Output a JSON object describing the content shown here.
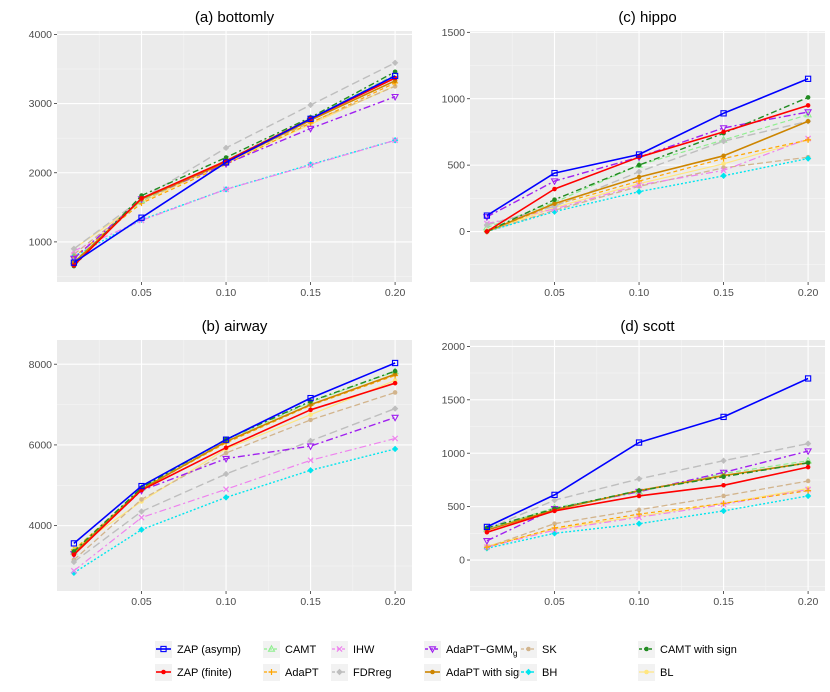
{
  "colors": {
    "ZAP (asymp)": "#0000ff",
    "ZAP (finite)": "#ff0000",
    "CAMT": "#90ee90",
    "AdaPT": "#ffa500",
    "IHW": "#ee82ee",
    "FDRreg": "#bebebe",
    "AdaPT-GMM": "#a020f0",
    "AdaPT with sign": "#cd8500",
    "SK": "#d2b48c",
    "BH": "#00e5ee",
    "CAMT with sign": "#228b22",
    "BL": "#ffe680"
  },
  "legend": {
    "entries": [
      {
        "key": "ZAP (asymp)",
        "label": "ZAP (asymp)"
      },
      {
        "key": "ZAP (finite)",
        "label": "ZAP (finite)"
      },
      {
        "key": "CAMT",
        "label": "CAMT"
      },
      {
        "key": "AdaPT",
        "label": "AdaPT"
      },
      {
        "key": "IHW",
        "label": "IHW"
      },
      {
        "key": "FDRreg",
        "label": "FDRreg"
      },
      {
        "key": "AdaPT-GMM",
        "label": "AdaPT−GMM",
        "subscript": "g"
      },
      {
        "key": "AdaPT with sign",
        "label": "AdaPT with sign"
      },
      {
        "key": "SK",
        "label": "SK"
      },
      {
        "key": "BH",
        "label": "BH"
      },
      {
        "key": "CAMT with sign",
        "label": "CAMT with sign"
      },
      {
        "key": "BL",
        "label": "BL"
      }
    ]
  },
  "chart_data": [
    {
      "id": "bottomly",
      "type": "line",
      "title": "(a) bottomly",
      "x": [
        0.01,
        0.05,
        0.1,
        0.15,
        0.2
      ],
      "xticks": [
        "0.05",
        "0.10",
        "0.15",
        "0.20"
      ],
      "xlim": [
        0.0,
        0.21
      ],
      "ylim": [
        420,
        4050
      ],
      "yticks": [
        1000,
        2000,
        3000,
        4000
      ],
      "series": [
        {
          "name": "ZAP (asymp)",
          "values": [
            700,
            1350,
            2150,
            2780,
            3400
          ]
        },
        {
          "name": "ZAP (finite)",
          "values": [
            660,
            1630,
            2170,
            2780,
            3370
          ]
        },
        {
          "name": "CAMT",
          "values": [
            720,
            1600,
            2180,
            2790,
            3420
          ]
        },
        {
          "name": "AdaPT",
          "values": [
            780,
            1560,
            2120,
            2720,
            3300
          ]
        },
        {
          "name": "IHW",
          "values": [
            870,
            1310,
            1760,
            2110,
            2470
          ]
        },
        {
          "name": "FDRreg",
          "values": [
            900,
            1620,
            2360,
            2980,
            3590
          ]
        },
        {
          "name": "AdaPT-GMM",
          "values": [
            760,
            1620,
            2130,
            2640,
            3100
          ]
        },
        {
          "name": "AdaPT with sign",
          "values": [
            700,
            1620,
            2150,
            2760,
            3330
          ]
        },
        {
          "name": "SK",
          "values": [
            820,
            1590,
            2160,
            2730,
            3250
          ]
        },
        {
          "name": "BH",
          "values": [
            790,
            1320,
            1760,
            2120,
            2470
          ]
        },
        {
          "name": "CAMT with sign",
          "values": [
            650,
            1670,
            2220,
            2800,
            3460
          ]
        },
        {
          "name": "BL",
          "values": [
            900,
            1580,
            2140,
            2700,
            3260
          ]
        }
      ]
    },
    {
      "id": "hippo",
      "type": "line",
      "title": "(c) hippo",
      "x": [
        0.01,
        0.05,
        0.1,
        0.15,
        0.2
      ],
      "xticks": [
        "0.05",
        "0.10",
        "0.15",
        "0.20"
      ],
      "xlim": [
        0.0,
        0.21
      ],
      "ylim": [
        -380,
        1510
      ],
      "yticks": [
        0,
        500,
        1000,
        1500
      ],
      "series": [
        {
          "name": "ZAP (asymp)",
          "values": [
            120,
            440,
            580,
            890,
            1150
          ]
        },
        {
          "name": "ZAP (finite)",
          "values": [
            0,
            320,
            560,
            750,
            950
          ]
        },
        {
          "name": "CAMT",
          "values": [
            30,
            220,
            500,
            690,
            880
          ]
        },
        {
          "name": "AdaPT",
          "values": [
            0,
            200,
            380,
            550,
            690
          ]
        },
        {
          "name": "IHW",
          "values": [
            60,
            170,
            350,
            460,
            700
          ]
        },
        {
          "name": "FDRreg",
          "values": [
            50,
            190,
            450,
            680,
            830
          ]
        },
        {
          "name": "AdaPT-GMM",
          "values": [
            110,
            380,
            560,
            780,
            900
          ]
        },
        {
          "name": "AdaPT with sign",
          "values": [
            0,
            210,
            410,
            570,
            830
          ]
        },
        {
          "name": "SK",
          "values": [
            0,
            160,
            340,
            480,
            560
          ]
        },
        {
          "name": "BH",
          "values": [
            0,
            150,
            300,
            420,
            550
          ]
        },
        {
          "name": "CAMT with sign",
          "values": [
            0,
            240,
            500,
            740,
            1010
          ]
        },
        {
          "name": "BL",
          "values": [
            0,
            180,
            360,
            510,
            690
          ]
        }
      ]
    },
    {
      "id": "airway",
      "type": "line",
      "title": "(b) airway",
      "x": [
        0.01,
        0.05,
        0.1,
        0.15,
        0.2
      ],
      "xticks": [
        "0.05",
        "0.10",
        "0.15",
        "0.20"
      ],
      "xlim": [
        0.0,
        0.21
      ],
      "ylim": [
        2380,
        8600
      ],
      "yticks": [
        4000,
        6000,
        8000
      ],
      "series": [
        {
          "name": "ZAP (asymp)",
          "values": [
            3560,
            4980,
            6130,
            7160,
            8030
          ]
        },
        {
          "name": "ZAP (finite)",
          "values": [
            3280,
            4880,
            5930,
            6870,
            7530
          ]
        },
        {
          "name": "CAMT",
          "values": [
            3350,
            4930,
            6110,
            7060,
            7820
          ]
        },
        {
          "name": "AdaPT",
          "values": [
            3400,
            4900,
            6050,
            6980,
            7720
          ]
        },
        {
          "name": "IHW",
          "values": [
            2880,
            4200,
            4900,
            5620,
            6160
          ]
        },
        {
          "name": "FDRreg",
          "values": [
            3100,
            4350,
            5280,
            6100,
            6900
          ]
        },
        {
          "name": "AdaPT-GMM",
          "values": [
            3300,
            4870,
            5660,
            5970,
            6680
          ]
        },
        {
          "name": "AdaPT with sign",
          "values": [
            3320,
            4900,
            6080,
            7000,
            7750
          ]
        },
        {
          "name": "SK",
          "values": [
            3150,
            4650,
            5800,
            6620,
            7300
          ]
        },
        {
          "name": "BH",
          "values": [
            2830,
            3900,
            4700,
            5370,
            5900
          ]
        },
        {
          "name": "CAMT with sign",
          "values": [
            3360,
            4940,
            6140,
            7080,
            7830
          ]
        },
        {
          "name": "BL",
          "values": [
            3420,
            4600,
            5900,
            6750,
            7600
          ]
        }
      ]
    },
    {
      "id": "scott",
      "type": "line",
      "title": "(d) scott",
      "x": [
        0.01,
        0.05,
        0.1,
        0.15,
        0.2
      ],
      "xticks": [
        "0.05",
        "0.10",
        "0.15",
        "0.20"
      ],
      "xlim": [
        0.0,
        0.21
      ],
      "ylim": [
        -290,
        2060
      ],
      "yticks": [
        0,
        500,
        1000,
        1500,
        2000
      ],
      "series": [
        {
          "name": "ZAP (asymp)",
          "values": [
            310,
            610,
            1100,
            1340,
            1700
          ]
        },
        {
          "name": "ZAP (finite)",
          "values": [
            260,
            460,
            600,
            700,
            870
          ]
        },
        {
          "name": "CAMT",
          "values": [
            290,
            490,
            640,
            810,
            930
          ]
        },
        {
          "name": "AdaPT",
          "values": [
            120,
            300,
            430,
            530,
            650
          ]
        },
        {
          "name": "IHW",
          "values": [
            120,
            280,
            400,
            520,
            660
          ]
        },
        {
          "name": "FDRreg",
          "values": [
            290,
            560,
            760,
            930,
            1090
          ]
        },
        {
          "name": "AdaPT-GMM",
          "values": [
            180,
            480,
            640,
            820,
            1020
          ]
        },
        {
          "name": "AdaPT with sign",
          "values": [
            280,
            470,
            650,
            790,
            910
          ]
        },
        {
          "name": "SK",
          "values": [
            120,
            340,
            470,
            600,
            740
          ]
        },
        {
          "name": "BH",
          "values": [
            110,
            250,
            340,
            460,
            600
          ]
        },
        {
          "name": "CAMT with sign",
          "values": [
            300,
            480,
            650,
            780,
            910
          ]
        },
        {
          "name": "BL",
          "values": [
            130,
            290,
            410,
            530,
            670
          ]
        }
      ]
    }
  ]
}
